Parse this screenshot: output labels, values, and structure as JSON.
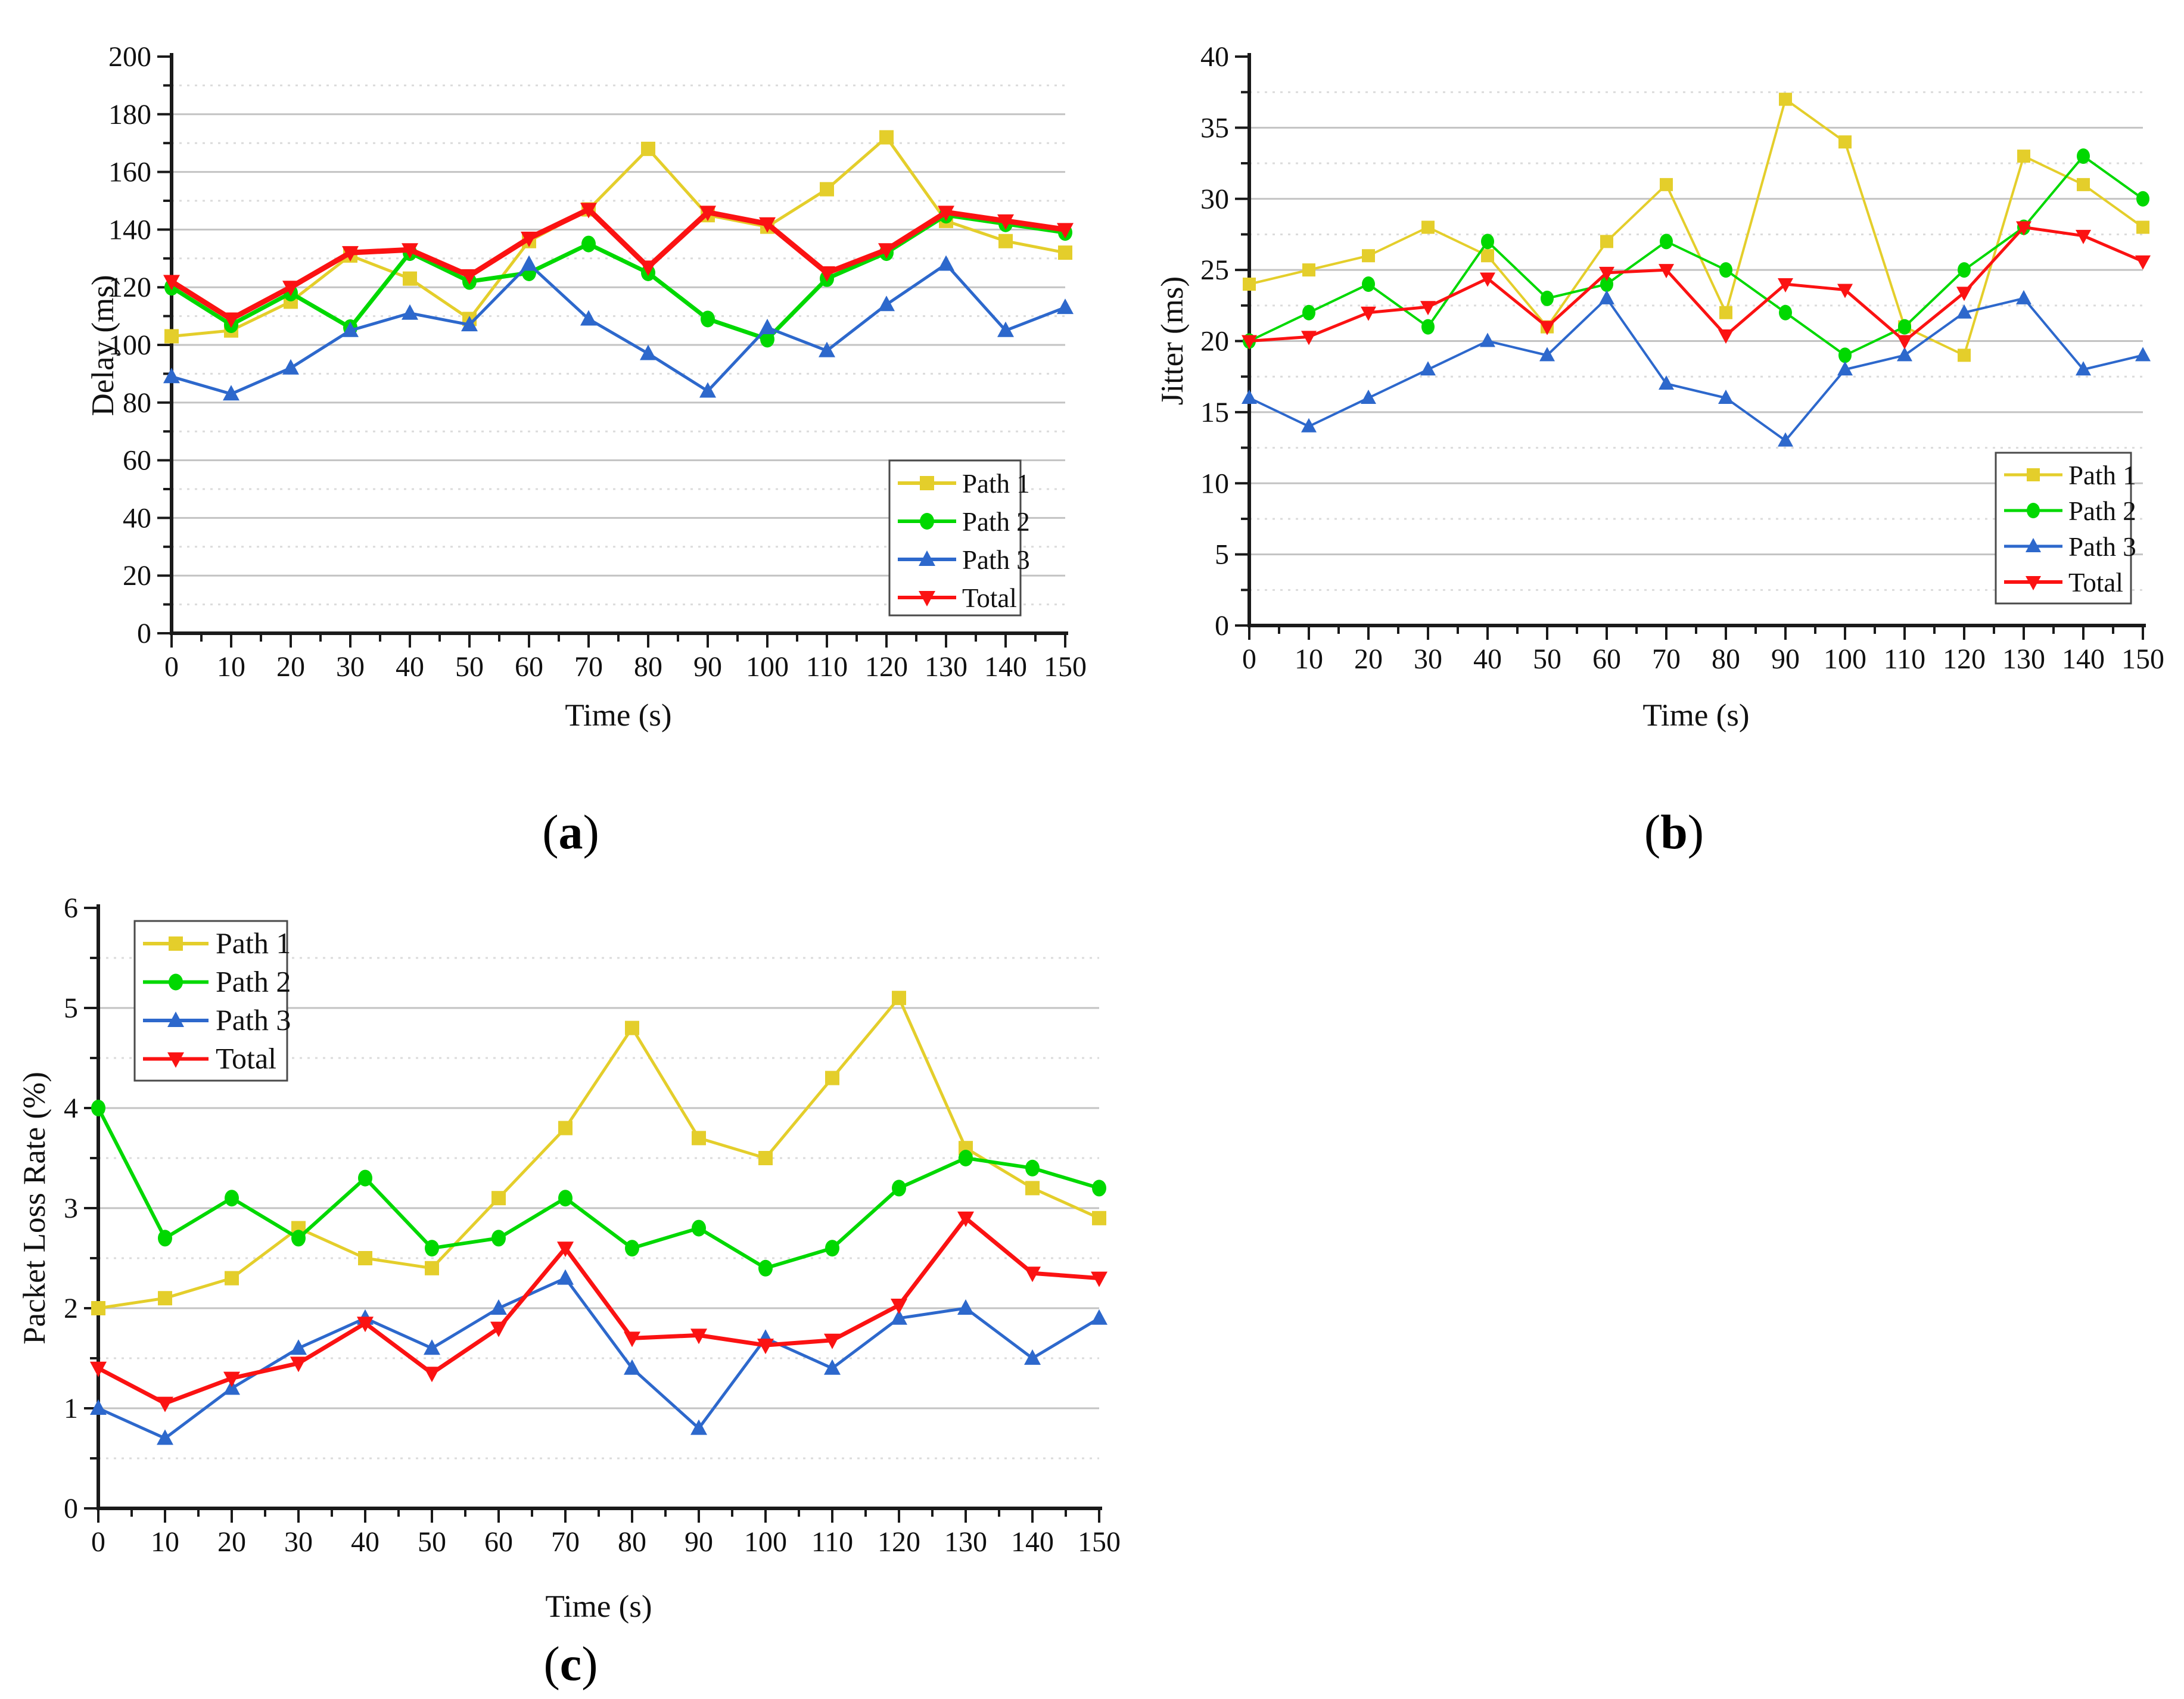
{
  "figure": {
    "background": "#ffffff",
    "style": {
      "grid_major_color": "#c3c3c3",
      "grid_minor_color": "#dbdbdb",
      "axis_color": "#1a1a1a",
      "legend_border_color": "#4a4a4a"
    }
  },
  "chart_data": [
    {
      "id": "a",
      "type": "line",
      "caption_parts": [
        "(",
        "a",
        ")"
      ],
      "xlabel": "Time (s)",
      "ylabel": "Delay (ms)",
      "xlim": [
        0,
        150
      ],
      "ylim": [
        0,
        200
      ],
      "xtick_step": 10,
      "xminor_step": 5,
      "ytick_step": 20,
      "yminor_step": 10,
      "grid": "horizontal major solid, minor dotted",
      "legend_position": "inside-right-lower",
      "x": [
        0,
        10,
        20,
        30,
        40,
        50,
        60,
        70,
        80,
        90,
        100,
        110,
        120,
        130,
        140,
        150
      ],
      "series": [
        {
          "name": "Path 1",
          "color": "#E4CE2B",
          "marker": "square",
          "values": [
            103,
            105,
            115,
            131,
            123,
            109,
            136,
            147,
            168,
            145,
            141,
            154,
            172,
            143,
            136,
            132
          ]
        },
        {
          "name": "Path 2",
          "color": "#00D800",
          "marker": "circle",
          "values": [
            120,
            107,
            118,
            106,
            132,
            122,
            125,
            135,
            125,
            109,
            102,
            123,
            132,
            145,
            142,
            139
          ]
        },
        {
          "name": "Path 3",
          "color": "#2D68CC",
          "marker": "triangle-up",
          "values": [
            89,
            83,
            92,
            105,
            111,
            107,
            128,
            109,
            97,
            84,
            106,
            98,
            114,
            128,
            105,
            113
          ]
        },
        {
          "name": "Total",
          "color": "#FB1212",
          "marker": "triangle-down",
          "values": [
            122,
            109,
            120,
            132,
            133,
            124,
            137,
            147,
            127,
            146,
            142,
            125,
            133,
            146,
            143,
            140
          ]
        }
      ]
    },
    {
      "id": "b",
      "type": "line",
      "caption_parts": [
        "(",
        "b",
        ")"
      ],
      "xlabel": "Time (s)",
      "ylabel": "Jitter (ms)",
      "xlim": [
        0,
        150
      ],
      "ylim": [
        0,
        40
      ],
      "xtick_step": 10,
      "xminor_step": 5,
      "ytick_step": 5,
      "yminor_step": 2.5,
      "grid": "horizontal major solid, minor dotted",
      "legend_position": "inside-right-lower",
      "x": [
        0,
        10,
        20,
        30,
        40,
        50,
        60,
        70,
        80,
        90,
        100,
        110,
        120,
        130,
        140,
        150
      ],
      "series": [
        {
          "name": "Path 1",
          "color": "#E4CE2B",
          "marker": "square",
          "values": [
            24,
            25,
            26,
            28,
            26,
            21,
            27,
            31,
            22,
            37,
            34,
            21,
            19,
            33,
            31,
            28
          ]
        },
        {
          "name": "Path 2",
          "color": "#00D800",
          "marker": "circle",
          "values": [
            20,
            22,
            24,
            21,
            27,
            23,
            24,
            27,
            25,
            22,
            19,
            21,
            25,
            28,
            33,
            30
          ]
        },
        {
          "name": "Path 3",
          "color": "#2D68CC",
          "marker": "triangle-up",
          "values": [
            16,
            14,
            16,
            18,
            20,
            19,
            23,
            17,
            16,
            13,
            18,
            19,
            22,
            23,
            18,
            19
          ]
        },
        {
          "name": "Total",
          "color": "#FB1212",
          "marker": "triangle-down",
          "values": [
            20,
            20.3,
            22,
            22.4,
            24.4,
            21,
            24.8,
            25,
            20.4,
            24,
            23.6,
            20,
            23.4,
            28,
            27.4,
            25.6
          ]
        }
      ]
    },
    {
      "id": "c",
      "type": "line",
      "caption_parts": [
        "(",
        "c",
        ")"
      ],
      "xlabel": "Time (s)",
      "ylabel": "Packet Loss Rate (%)",
      "xlim": [
        0,
        150
      ],
      "ylim": [
        0,
        6
      ],
      "xtick_step": 10,
      "xminor_step": 5,
      "ytick_step": 1,
      "yminor_step": 0.5,
      "grid": "horizontal major solid, minor dotted",
      "legend_position": "inside-top-left",
      "x": [
        0,
        10,
        20,
        30,
        40,
        50,
        60,
        70,
        80,
        90,
        100,
        110,
        120,
        130,
        140,
        150
      ],
      "series": [
        {
          "name": "Path 1",
          "color": "#E4CE2B",
          "marker": "square",
          "values": [
            2.0,
            2.1,
            2.3,
            2.8,
            2.5,
            2.4,
            3.1,
            3.8,
            4.8,
            3.7,
            3.5,
            4.3,
            5.1,
            3.6,
            3.2,
            2.9
          ]
        },
        {
          "name": "Path 2",
          "color": "#00D800",
          "marker": "circle",
          "values": [
            4.0,
            2.7,
            3.1,
            2.7,
            3.3,
            2.6,
            2.7,
            3.1,
            2.6,
            2.8,
            2.4,
            2.6,
            3.2,
            3.5,
            3.4,
            3.2
          ]
        },
        {
          "name": "Path 3",
          "color": "#2D68CC",
          "marker": "triangle-up",
          "values": [
            1.0,
            0.7,
            1.2,
            1.6,
            1.9,
            1.6,
            2.0,
            2.3,
            1.4,
            0.8,
            1.7,
            1.4,
            1.9,
            2.0,
            1.5,
            1.9
          ]
        },
        {
          "name": "Total",
          "color": "#FB1212",
          "marker": "triangle-down",
          "values": [
            1.4,
            1.05,
            1.3,
            1.45,
            1.85,
            1.35,
            1.8,
            2.6,
            1.7,
            1.73,
            1.63,
            1.68,
            2.03,
            2.9,
            2.35,
            2.3
          ]
        }
      ]
    }
  ]
}
